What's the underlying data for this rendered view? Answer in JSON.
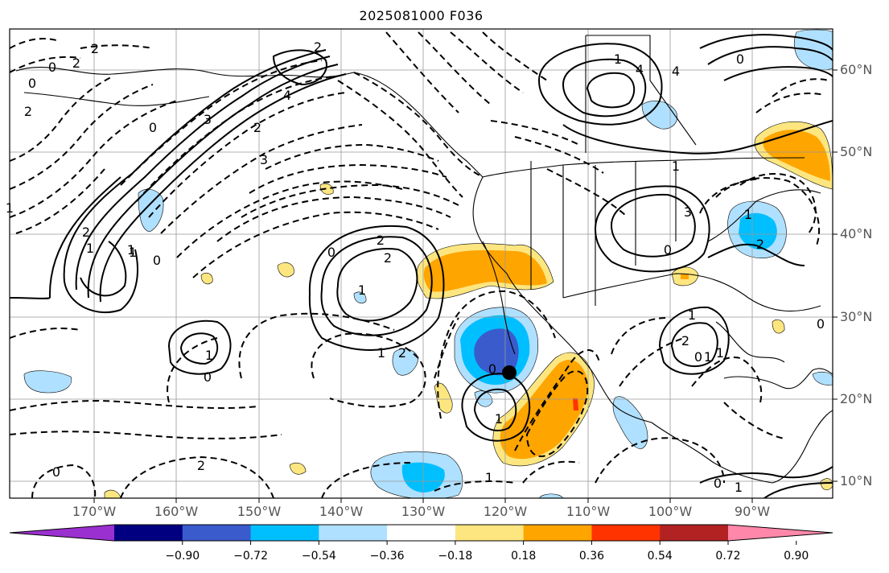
{
  "title": "2025081000 F036",
  "longitude_labels": [
    "170°W",
    "160°W",
    "150°W",
    "140°W",
    "130°W",
    "120°W",
    "110°W",
    "100°W",
    "90°W"
  ],
  "latitude_labels": [
    "60°N",
    "50°N",
    "40°N",
    "30°N",
    "20°N",
    "10°N"
  ],
  "colorbar": {
    "ticks": [
      "−0.90",
      "−0.72",
      "−0.54",
      "−0.36",
      "−0.18",
      "0.18",
      "0.36",
      "0.54",
      "0.72",
      "0.90"
    ],
    "colors": [
      "#9b30d0",
      "#000080",
      "#3a5bcc",
      "#00bfff",
      "#b0e0ff",
      "#ffffff",
      "#fde680",
      "#ffa500",
      "#ff3300",
      "#b22222",
      "#ff88aa"
    ]
  },
  "contour_labels": [
    "0",
    "2",
    "2",
    "2",
    "0",
    "3",
    "4",
    "2",
    "0",
    "3",
    "2",
    "1",
    "0",
    "1",
    "2",
    "1",
    "2",
    "0",
    "1",
    "2",
    "4",
    "1",
    "0",
    "1",
    "3",
    "4",
    "2",
    "1",
    "0",
    "1",
    "2",
    "1",
    "0",
    "1",
    "2",
    "1",
    "0",
    "1",
    "2",
    "0",
    "1",
    "0",
    "1",
    "1",
    "0",
    "1",
    "0"
  ],
  "marker": "storm-center-dot"
}
